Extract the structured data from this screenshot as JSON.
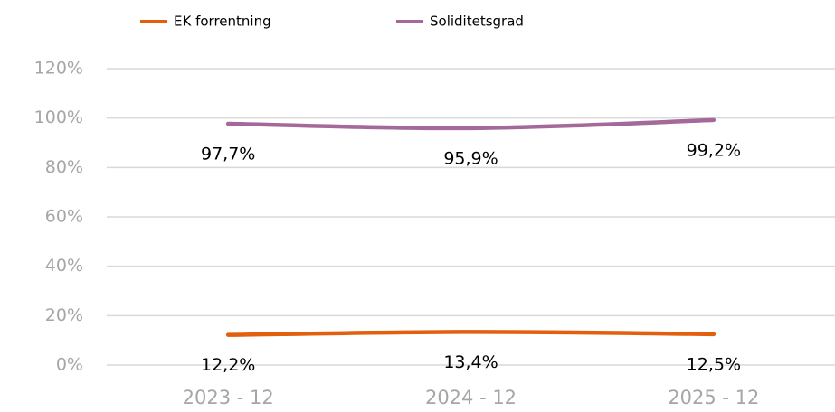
{
  "chart_data": {
    "type": "line",
    "categories": [
      "2023 - 12",
      "2024 - 12",
      "2025 - 12"
    ],
    "series": [
      {
        "name": "EK forrentning",
        "color": "#e35f0e",
        "values": [
          12.2,
          13.4,
          12.5
        ],
        "value_labels": [
          "12,2%",
          "13,4%",
          "12,5%"
        ]
      },
      {
        "name": "Soliditetsgrad",
        "color": "#a5689b",
        "values": [
          97.7,
          95.9,
          99.2
        ],
        "value_labels": [
          "97,7%",
          "95,9%",
          "99,2%"
        ]
      }
    ],
    "ylim": [
      0,
      120
    ],
    "yticks": [
      {
        "value": 0,
        "label": "0%"
      },
      {
        "value": 20,
        "label": "20%"
      },
      {
        "value": 40,
        "label": "40%"
      },
      {
        "value": 60,
        "label": "60%"
      },
      {
        "value": 80,
        "label": "80%"
      },
      {
        "value": 100,
        "label": "100%"
      },
      {
        "value": 120,
        "label": "120%"
      }
    ],
    "grid": true,
    "legend": "top",
    "smooth": true
  }
}
